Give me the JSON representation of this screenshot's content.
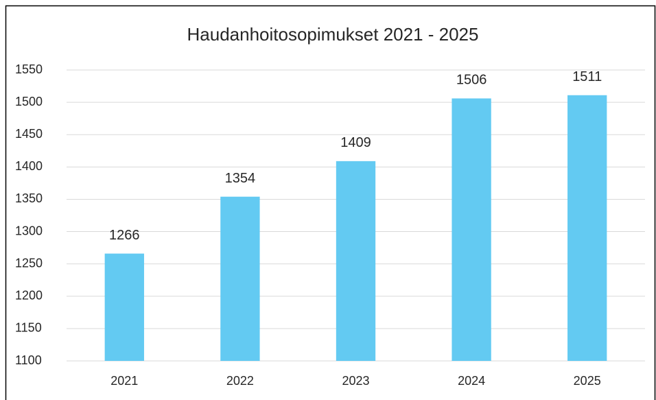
{
  "chart_data": {
    "type": "bar",
    "title": "Haudanhoitosopimukset 2021 - 2025",
    "categories": [
      "2021",
      "2022",
      "2023",
      "2024",
      "2025"
    ],
    "values": [
      1266,
      1354,
      1409,
      1506,
      1511
    ],
    "color": "#63caf2",
    "ylim": [
      1100,
      1550
    ],
    "yticks": [
      1100,
      1150,
      1200,
      1250,
      1300,
      1350,
      1400,
      1450,
      1500,
      1550
    ],
    "grid": true
  }
}
